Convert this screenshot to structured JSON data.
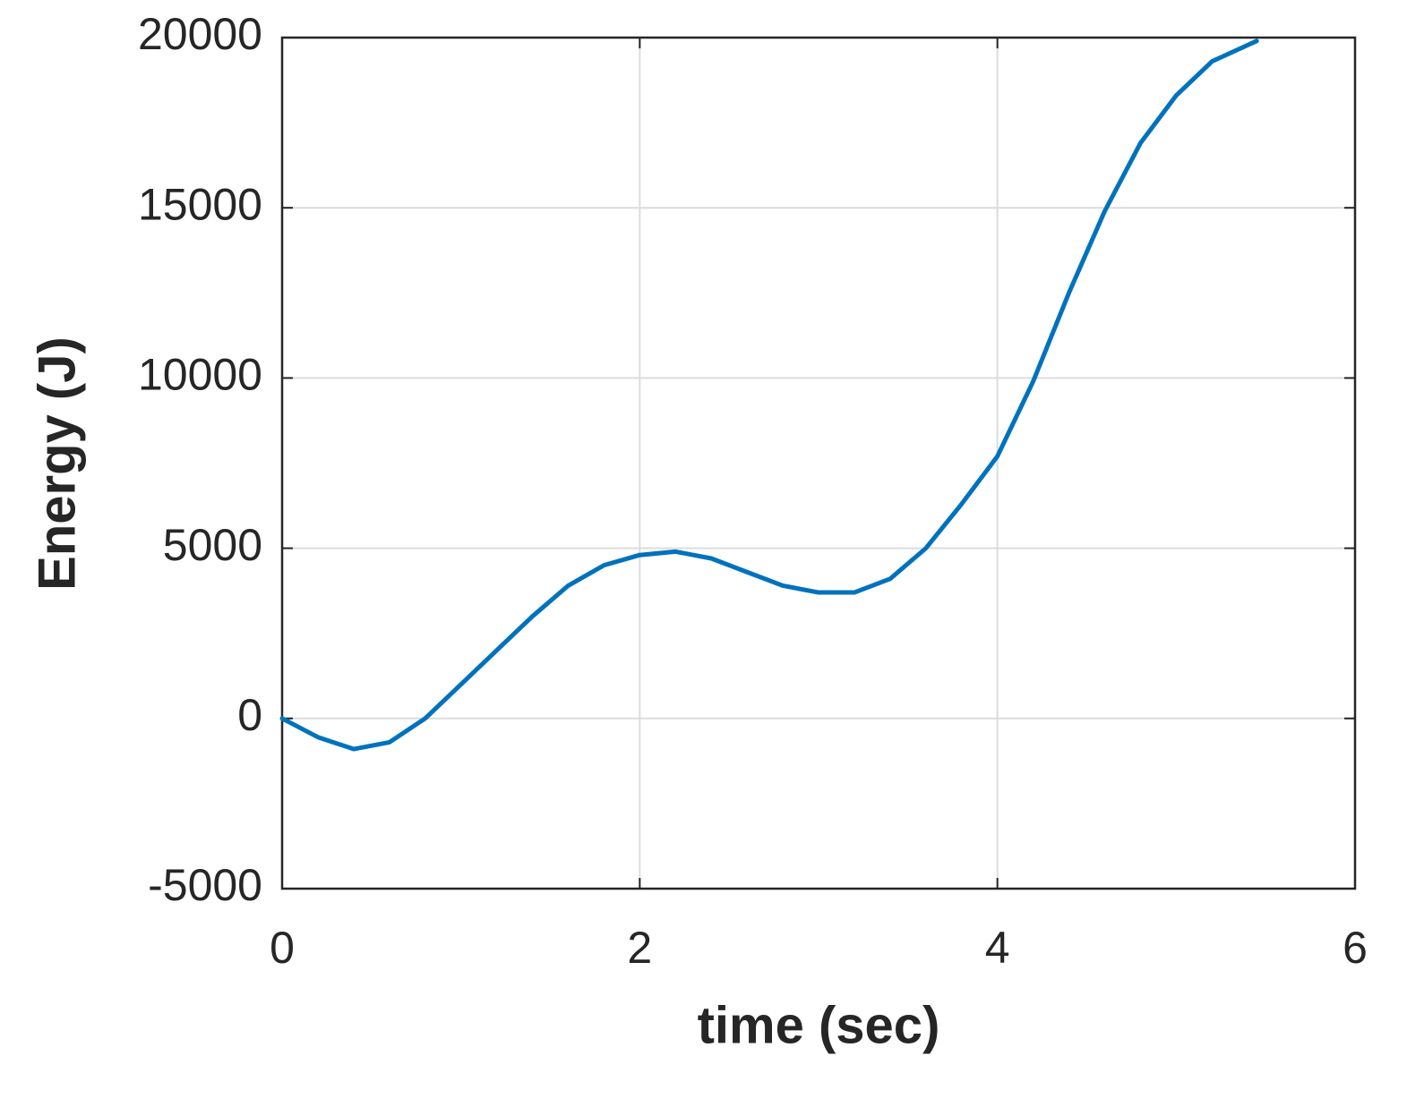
{
  "chart_data": {
    "type": "line",
    "xlabel": "time (sec)",
    "ylabel": "Energy (J)",
    "x": [
      0,
      0.2,
      0.4,
      0.6,
      0.8,
      1.0,
      1.2,
      1.4,
      1.6,
      1.8,
      2.0,
      2.2,
      2.4,
      2.6,
      2.8,
      3.0,
      3.2,
      3.4,
      3.6,
      3.8,
      4.0,
      4.2,
      4.4,
      4.6,
      4.8,
      5.0,
      5.2,
      5.45
    ],
    "series": [
      {
        "name": "Energy",
        "color": "#0072bd",
        "values": [
          0,
          -550,
          -900,
          -700,
          0,
          1000,
          2000,
          3000,
          3900,
          4500,
          4800,
          4900,
          4700,
          4300,
          3900,
          3700,
          3700,
          4100,
          5000,
          6300,
          7700,
          9900,
          12500,
          14900,
          16900,
          18300,
          19300,
          19900
        ]
      }
    ],
    "xlim": [
      0,
      6
    ],
    "xticks": [
      0,
      2,
      4,
      6
    ],
    "ylim": [
      -5000,
      20000
    ],
    "yticks": [
      -5000,
      0,
      5000,
      10000,
      15000,
      20000
    ],
    "grid": true
  }
}
